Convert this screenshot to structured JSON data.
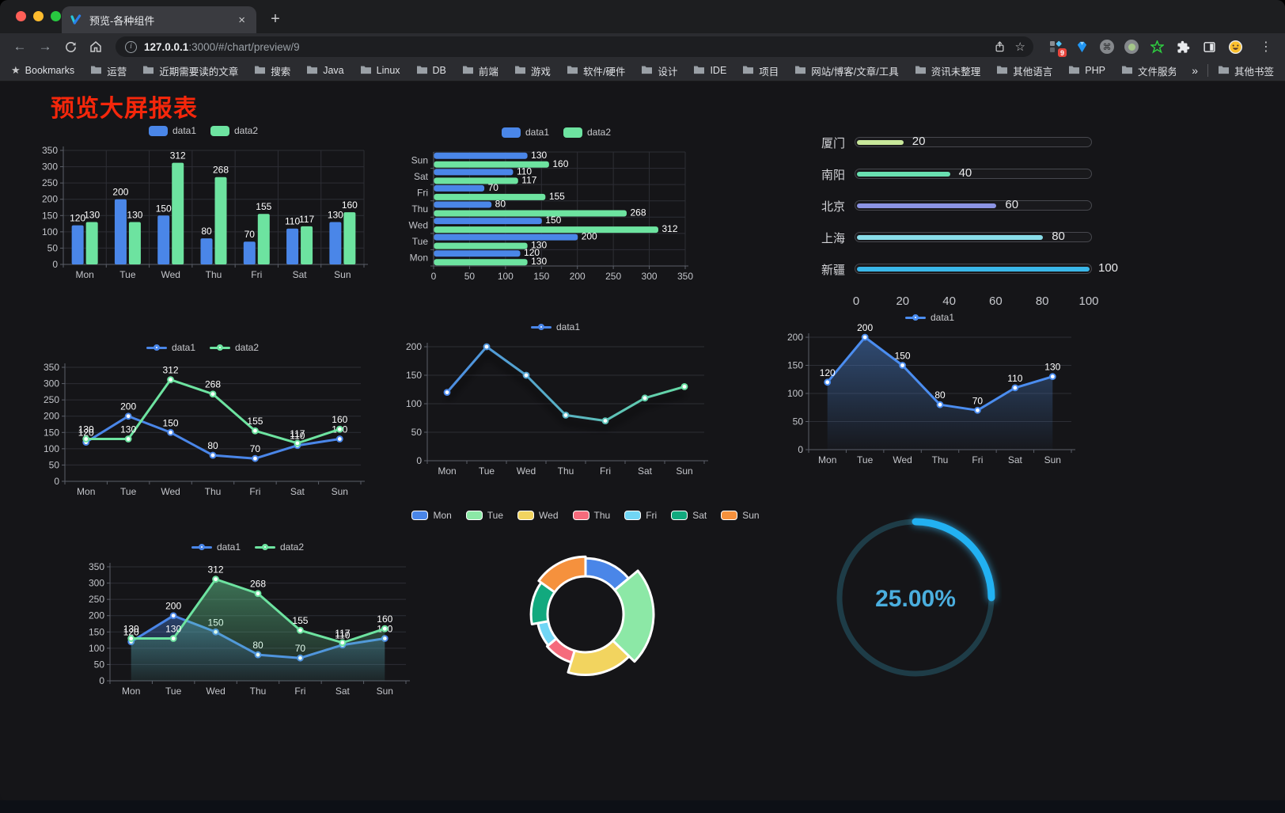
{
  "browser": {
    "traffic_lights": [
      "#ff5f57",
      "#febc2e",
      "#28c840"
    ],
    "tab_title": "预览-各种组件",
    "url_host": "127.0.0.1",
    "url_rest": ":3000/#/chart/preview/9",
    "bookmarks_root": "Bookmarks",
    "bookmark_folders": [
      "运营",
      "近期需要读的文章",
      "搜索",
      "Java",
      "Linux",
      "DB",
      "前端",
      "游戏",
      "软件/硬件",
      "设计",
      "IDE",
      "项目",
      "网站/博客/文章/工具",
      "资讯未整理",
      "其他语言",
      "PHP",
      "文件服务器"
    ],
    "bookmarks_overflow": "»",
    "other_bookmarks": "其他书签",
    "extension_badge_count": "9"
  },
  "page": {
    "title": "预览大屏报表",
    "title_color": "#f5270b",
    "background": "#151518"
  },
  "theme": {
    "grid_color": "#2d2e35",
    "axis_color": "#5b5f69",
    "tick_text_color": "#c3c5ca",
    "label_text_color": "#ffffff"
  },
  "chart_data": [
    {
      "id": "bar-grouped",
      "type": "bar",
      "categories": [
        "Mon",
        "Tue",
        "Wed",
        "Thu",
        "Fri",
        "Sat",
        "Sun"
      ],
      "series": [
        {
          "name": "data1",
          "color": "#4a86e8",
          "values": [
            120,
            200,
            150,
            80,
            70,
            110,
            130
          ]
        },
        {
          "name": "data2",
          "color": "#6de3a0",
          "values": [
            130,
            130,
            312,
            268,
            155,
            117,
            160
          ]
        }
      ],
      "ylim": [
        0,
        350
      ],
      "ytick_step": 50,
      "legend_position": "top",
      "value_labels": true,
      "grid": true
    },
    {
      "id": "bar-horizontal",
      "type": "barh",
      "categories": [
        "Mon",
        "Tue",
        "Wed",
        "Thu",
        "Fri",
        "Sat",
        "Sun"
      ],
      "series": [
        {
          "name": "data1",
          "color": "#4a86e8",
          "values": [
            120,
            200,
            150,
            80,
            70,
            110,
            130
          ]
        },
        {
          "name": "data2",
          "color": "#6de3a0",
          "values": [
            130,
            130,
            312,
            268,
            155,
            117,
            160
          ]
        }
      ],
      "xlim": [
        0,
        350
      ],
      "xtick_step": 50,
      "legend_position": "top",
      "value_labels": true,
      "grid": true
    },
    {
      "id": "progress-bars",
      "type": "progress",
      "categories": [
        "厦门",
        "南阳",
        "北京",
        "上海",
        "新疆"
      ],
      "values": [
        20,
        40,
        60,
        80,
        100
      ],
      "colors": [
        "#c9e89b",
        "#69e0b1",
        "#8c94e4",
        "#89dde9",
        "#3ab7e9"
      ],
      "xlim": [
        0,
        100
      ],
      "xticks": [
        0,
        20,
        40,
        60,
        80,
        100
      ]
    },
    {
      "id": "line-two-series",
      "type": "line",
      "categories": [
        "Mon",
        "Tue",
        "Wed",
        "Thu",
        "Fri",
        "Sat",
        "Sun"
      ],
      "series": [
        {
          "name": "data1",
          "color": "#4a86e8",
          "values": [
            120,
            200,
            150,
            80,
            70,
            110,
            130
          ]
        },
        {
          "name": "data2",
          "color": "#6de3a0",
          "values": [
            130,
            130,
            312,
            268,
            155,
            117,
            160
          ]
        }
      ],
      "ylim": [
        0,
        350
      ],
      "ytick_step": 50,
      "legend_position": "top",
      "value_labels": true,
      "grid": true
    },
    {
      "id": "line-gradient",
      "type": "line-gradient",
      "categories": [
        "Mon",
        "Tue",
        "Wed",
        "Thu",
        "Fri",
        "Sat",
        "Sun"
      ],
      "series": [
        {
          "name": "data1",
          "color_start": "#4a86e8",
          "color_end": "#68e0a0",
          "values": [
            120,
            200,
            150,
            80,
            70,
            110,
            130
          ]
        }
      ],
      "ylim": [
        0,
        200
      ],
      "ytick_step": 50,
      "legend_position": "top",
      "value_labels": false,
      "grid": true
    },
    {
      "id": "area-single",
      "type": "area",
      "categories": [
        "Mon",
        "Tue",
        "Wed",
        "Thu",
        "Fri",
        "Sat",
        "Sun"
      ],
      "series": [
        {
          "name": "data1",
          "color": "#4b8df0",
          "fill_from": "rgba(70,120,190,0.55)",
          "fill_to": "rgba(70,120,190,0.03)",
          "values": [
            120,
            200,
            150,
            80,
            70,
            110,
            130
          ]
        }
      ],
      "ylim": [
        0,
        200
      ],
      "ytick_step": 50,
      "legend_position": "top",
      "value_labels": true,
      "grid": true
    },
    {
      "id": "area-two-series",
      "type": "area",
      "categories": [
        "Mon",
        "Tue",
        "Wed",
        "Thu",
        "Fri",
        "Sat",
        "Sun"
      ],
      "series": [
        {
          "name": "data1",
          "color": "#4a86e8",
          "fill_from": "rgba(74,134,232,0.40)",
          "fill_to": "rgba(74,134,232,0.04)",
          "values": [
            120,
            200,
            150,
            80,
            70,
            110,
            130
          ]
        },
        {
          "name": "data2",
          "color": "#6de3a0",
          "fill_from": "rgba(109,227,160,0.45)",
          "fill_to": "rgba(109,227,160,0.06)",
          "values": [
            130,
            130,
            312,
            268,
            155,
            117,
            160
          ]
        }
      ],
      "ylim": [
        0,
        350
      ],
      "ytick_step": 50,
      "legend_position": "top",
      "value_labels": true,
      "grid": true
    },
    {
      "id": "pie-rose",
      "type": "pie",
      "mode": "rose",
      "categories": [
        "Mon",
        "Tue",
        "Wed",
        "Thu",
        "Fri",
        "Sat",
        "Sun"
      ],
      "values": [
        120,
        200,
        150,
        80,
        70,
        110,
        130
      ],
      "colors": [
        "#4a86e8",
        "#8ce8a6",
        "#f2d45f",
        "#f56b7c",
        "#71d6f5",
        "#12a97e",
        "#f5913d"
      ],
      "inner_radius": 48,
      "outer_radius_max": 86,
      "legend_position": "top",
      "border_color": "#ffffff"
    },
    {
      "id": "gauge",
      "type": "gauge",
      "value": 25,
      "label": "25.00%",
      "arc_color": "#22b1f2",
      "track_color": "#1e3c47",
      "text_color": "#4aaede"
    }
  ]
}
